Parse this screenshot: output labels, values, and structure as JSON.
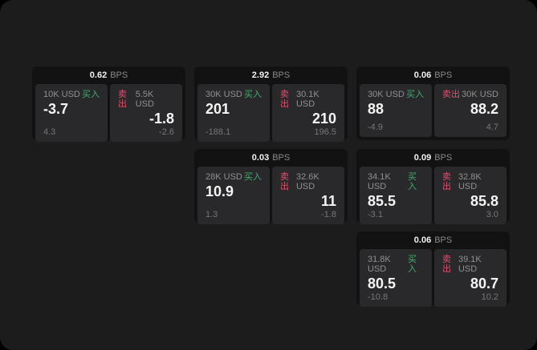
{
  "labels": {
    "bps_unit": "BPS",
    "buy": "买入",
    "sell": "卖出"
  },
  "colors": {
    "buy": "#3fae6e",
    "sell": "#e0506e",
    "background": "#1c1c1c",
    "card": "#121212",
    "panel": "#29292b"
  },
  "cards": [
    {
      "bps": "0.62",
      "buy": {
        "amount": "10K USD",
        "value": "-3.7",
        "delta": "4.3"
      },
      "sell": {
        "amount": "5.5K USD",
        "value": "-1.8",
        "delta": "-2.6"
      }
    },
    {
      "bps": "2.92",
      "buy": {
        "amount": "30K USD",
        "value": "201",
        "delta": "-188.1"
      },
      "sell": {
        "amount": "30.1K USD",
        "value": "210",
        "delta": "196.5"
      }
    },
    {
      "bps": "0.06",
      "buy": {
        "amount": "30K USD",
        "value": "88",
        "delta": "-4.9"
      },
      "sell": {
        "amount": "30K USD",
        "value": "88.2",
        "delta": "4.7"
      }
    },
    {
      "bps": "0.03",
      "buy": {
        "amount": "28K USD",
        "value": "10.9",
        "delta": "1.3"
      },
      "sell": {
        "amount": "32.6K USD",
        "value": "11",
        "delta": "-1.8"
      }
    },
    {
      "bps": "0.09",
      "buy": {
        "amount": "34.1K USD",
        "value": "85.5",
        "delta": "-3.1"
      },
      "sell": {
        "amount": "32.8K USD",
        "value": "85.8",
        "delta": "3.0"
      }
    },
    {
      "bps": "0.06",
      "buy": {
        "amount": "31.8K USD",
        "value": "80.5",
        "delta": "-10.8"
      },
      "sell": {
        "amount": "39.1K USD",
        "value": "80.7",
        "delta": "10.2"
      }
    }
  ]
}
